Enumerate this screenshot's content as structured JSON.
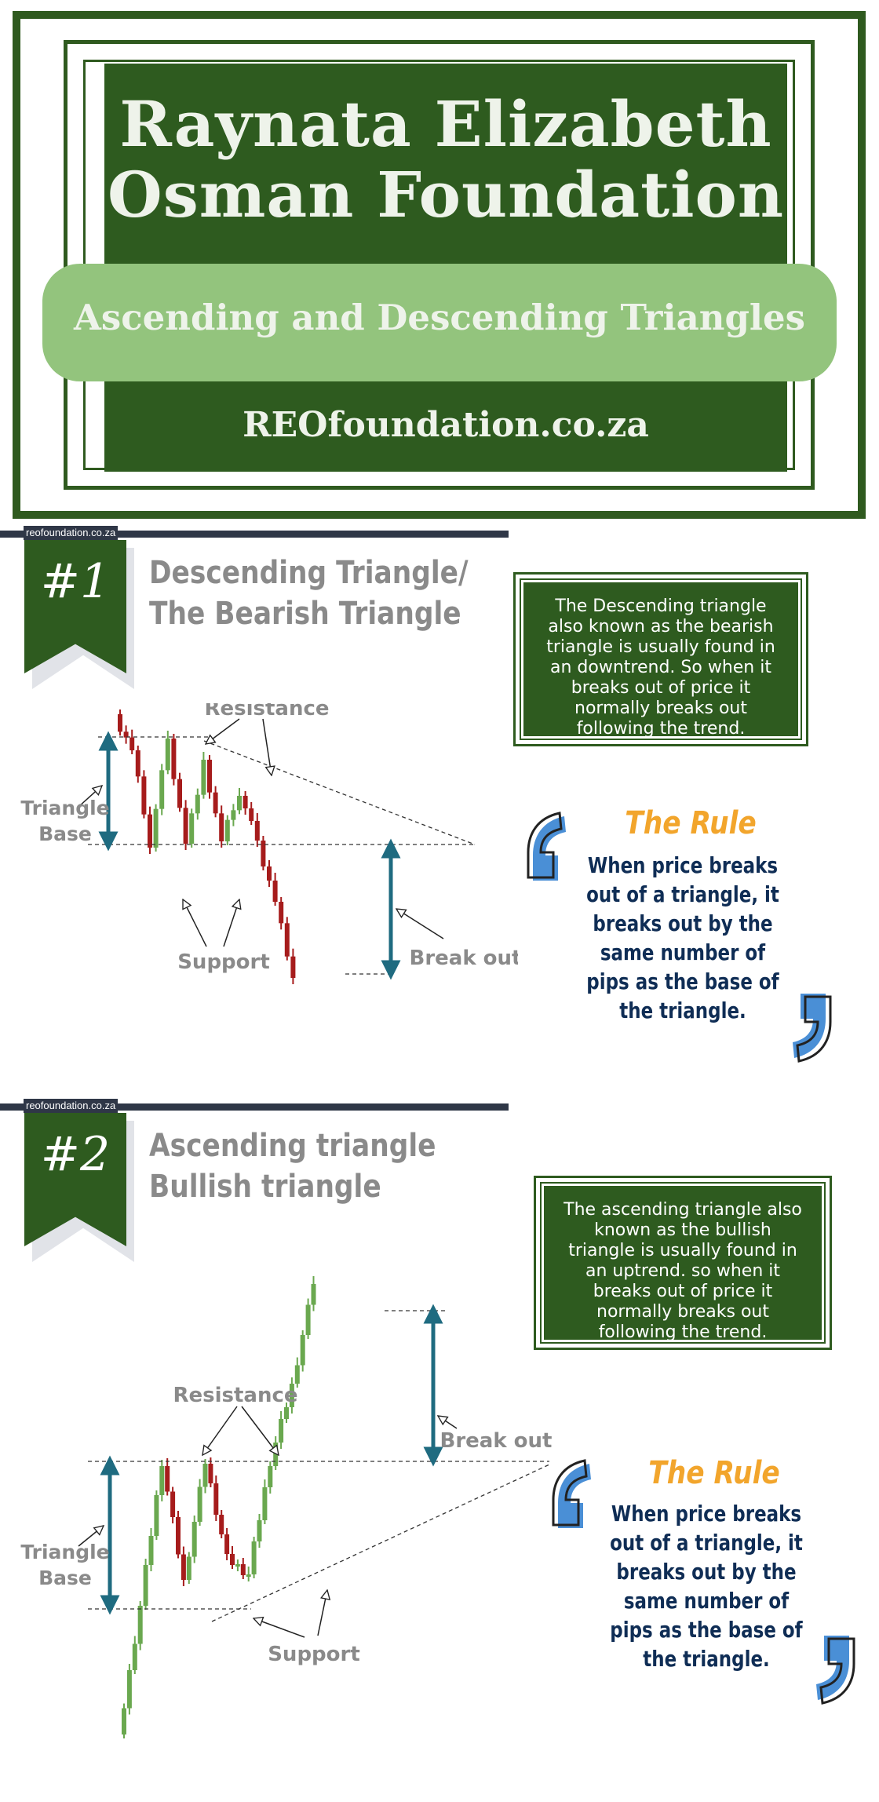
{
  "header": {
    "title_line1": "Raynata Elizabeth",
    "title_line2": "Osman Foundation",
    "subtitle": "Ascending and Descending Triangles",
    "website": "REOfoundation.co.za"
  },
  "watermark": "reofoundation.co.za",
  "sections": [
    {
      "number": "#1",
      "title_line1": "Descending Triangle/",
      "title_line2": "The Bearish Triangle",
      "description": "The Descending triangle also known as the bearish triangle is usually found in an downtrend. So when it breaks out of price it normally breaks out following the trend.",
      "rule_title": "The Rule",
      "rule_text": "When price breaks out of a triangle, it breaks out by the same number of pips as the base of the triangle.",
      "labels": {
        "resistance": "Resistance",
        "support": "Support",
        "triangle_base_1": "Triangle",
        "triangle_base_2": "Base",
        "break_out": "Break out"
      }
    },
    {
      "number": "#2",
      "title_line1": "Ascending triangle",
      "title_line2": "Bullish triangle",
      "description": "The ascending triangle also known as the bullish triangle is usually found in an uptrend. so when it breaks out of price it normally breaks out following the trend.",
      "rule_title": "The Rule",
      "rule_text": "When price breaks out of a triangle, it breaks out by the same number of pips as the base of the triangle.",
      "labels": {
        "resistance": "Resistance",
        "support": "Support",
        "triangle_base_1": "Triangle",
        "triangle_base_2": "Base",
        "break_out": "Break out"
      }
    }
  ],
  "colors": {
    "dark_green": "#2e5b1f",
    "light_green": "#93c47d",
    "bull_candle": "#6aa84f",
    "bear_candle": "#a61c1c",
    "arrow_teal": "#1f6b80",
    "rule_orange": "#f2a52c",
    "quote_blue": "#4a8fd6"
  },
  "icons": {
    "open_quote": "open-quote-icon",
    "close_quote": "close-quote-icon",
    "callout_arrow": "callout-arrow-icon"
  }
}
